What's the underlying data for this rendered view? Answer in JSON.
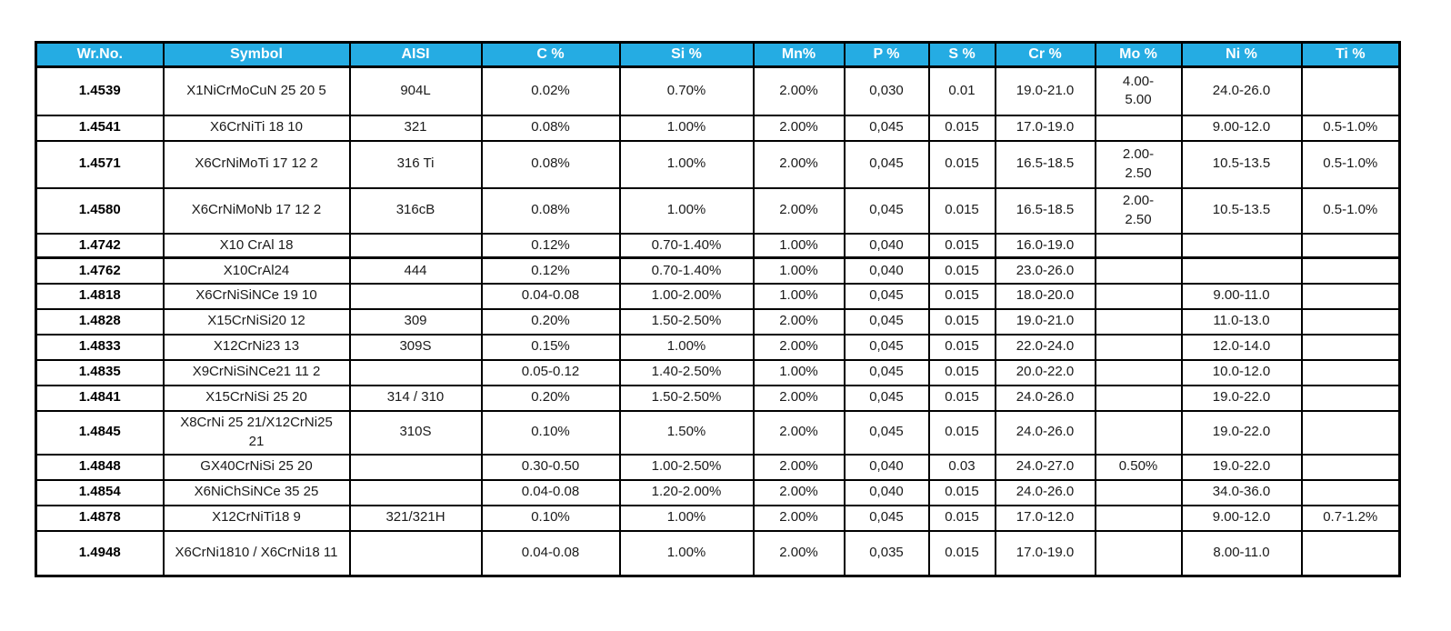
{
  "colors": {
    "header_background": "#25ACE3",
    "header_text": "#ffffff",
    "grid_border": "#000000",
    "page_background": "#ffffff"
  },
  "table": {
    "columns": [
      "Wr.No.",
      "Symbol",
      "AISI",
      "C %",
      "Si %",
      "Mn%",
      "P %",
      "S %",
      "Cr %",
      "Mo %",
      "Ni %",
      "Ti %"
    ],
    "rows": [
      [
        "1.4539",
        "X1NiCrMoCuN 25 20 5",
        "904L",
        "0.02%",
        "0.70%",
        "2.00%",
        "0,030",
        "0.01",
        "19.0-21.0",
        "4.00-5.00",
        "24.0-26.0",
        ""
      ],
      [
        "1.4541",
        "X6CrNiTi 18 10",
        "321",
        "0.08%",
        "1.00%",
        "2.00%",
        "0,045",
        "0.015",
        "17.0-19.0",
        "",
        "9.00-12.0",
        "0.5-1.0%"
      ],
      [
        "1.4571",
        "X6CrNiMoTi 17 12 2",
        "316 Ti",
        "0.08%",
        "1.00%",
        "2.00%",
        "0,045",
        "0.015",
        "16.5-18.5",
        "2.00-2.50",
        "10.5-13.5",
        "0.5-1.0%"
      ],
      [
        "1.4580",
        "X6CrNiMoNb 17 12 2",
        "316cB",
        "0.08%",
        "1.00%",
        "2.00%",
        "0,045",
        "0.015",
        "16.5-18.5",
        "2.00-2.50",
        "10.5-13.5",
        "0.5-1.0%"
      ],
      [
        "1.4742",
        "X10 CrAl 18",
        "",
        "0.12%",
        "0.70-1.40%",
        "1.00%",
        "0,040",
        "0.015",
        "16.0-19.0",
        "",
        "",
        ""
      ],
      [
        "1.4762",
        "X10CrAl24",
        "444",
        "0.12%",
        "0.70-1.40%",
        "1.00%",
        "0,040",
        "0.015",
        "23.0-26.0",
        "",
        "",
        ""
      ],
      [
        "1.4818",
        "X6CrNiSiNCe 19 10",
        "",
        "0.04-0.08",
        "1.00-2.00%",
        "1.00%",
        "0,045",
        "0.015",
        "18.0-20.0",
        "",
        "9.00-11.0",
        ""
      ],
      [
        "1.4828",
        "X15CrNiSi20 12",
        "309",
        "0.20%",
        "1.50-2.50%",
        "2.00%",
        "0,045",
        "0.015",
        "19.0-21.0",
        "",
        "11.0-13.0",
        ""
      ],
      [
        "1.4833",
        "X12CrNi23 13",
        "309S",
        "0.15%",
        "1.00%",
        "2.00%",
        "0,045",
        "0.015",
        "22.0-24.0",
        "",
        "12.0-14.0",
        ""
      ],
      [
        "1.4835",
        "X9CrNiSiNCe21 11 2",
        "",
        "0.05-0.12",
        "1.40-2.50%",
        "1.00%",
        "0,045",
        "0.015",
        "20.0-22.0",
        "",
        "10.0-12.0",
        ""
      ],
      [
        "1.4841",
        "X15CrNiSi 25 20",
        "314 / 310",
        "0.20%",
        "1.50-2.50%",
        "2.00%",
        "0,045",
        "0.015",
        "24.0-26.0",
        "",
        "19.0-22.0",
        ""
      ],
      [
        "1.4845",
        "X8CrNi 25 21/X12CrNi25 21",
        "310S",
        "0.10%",
        "1.50%",
        "2.00%",
        "0,045",
        "0.015",
        "24.0-26.0",
        "",
        "19.0-22.0",
        ""
      ],
      [
        "1.4848",
        "GX40CrNiSi 25 20",
        "",
        "0.30-0.50",
        "1.00-2.50%",
        "2.00%",
        "0,040",
        "0.03",
        "24.0-27.0",
        "0.50%",
        "19.0-22.0",
        ""
      ],
      [
        "1.4854",
        "X6NiChSiNCe 35 25",
        "",
        "0.04-0.08",
        "1.20-2.00%",
        "2.00%",
        "0,040",
        "0.015",
        "24.0-26.0",
        "",
        "34.0-36.0",
        ""
      ],
      [
        "1.4878",
        "X12CrNiTi18 9",
        "321/321H",
        "0.10%",
        "1.00%",
        "2.00%",
        "0,045",
        "0.015",
        "17.0-12.0",
        "",
        "9.00-12.0",
        "0.7-1.2%"
      ],
      [
        "1.4948",
        "X6CrNi1810 / X6CrNi18 11",
        "",
        "0.04-0.08",
        "1.00%",
        "2.00%",
        "0,035",
        "0.015",
        "17.0-19.0",
        "",
        "8.00-11.0",
        ""
      ]
    ]
  }
}
